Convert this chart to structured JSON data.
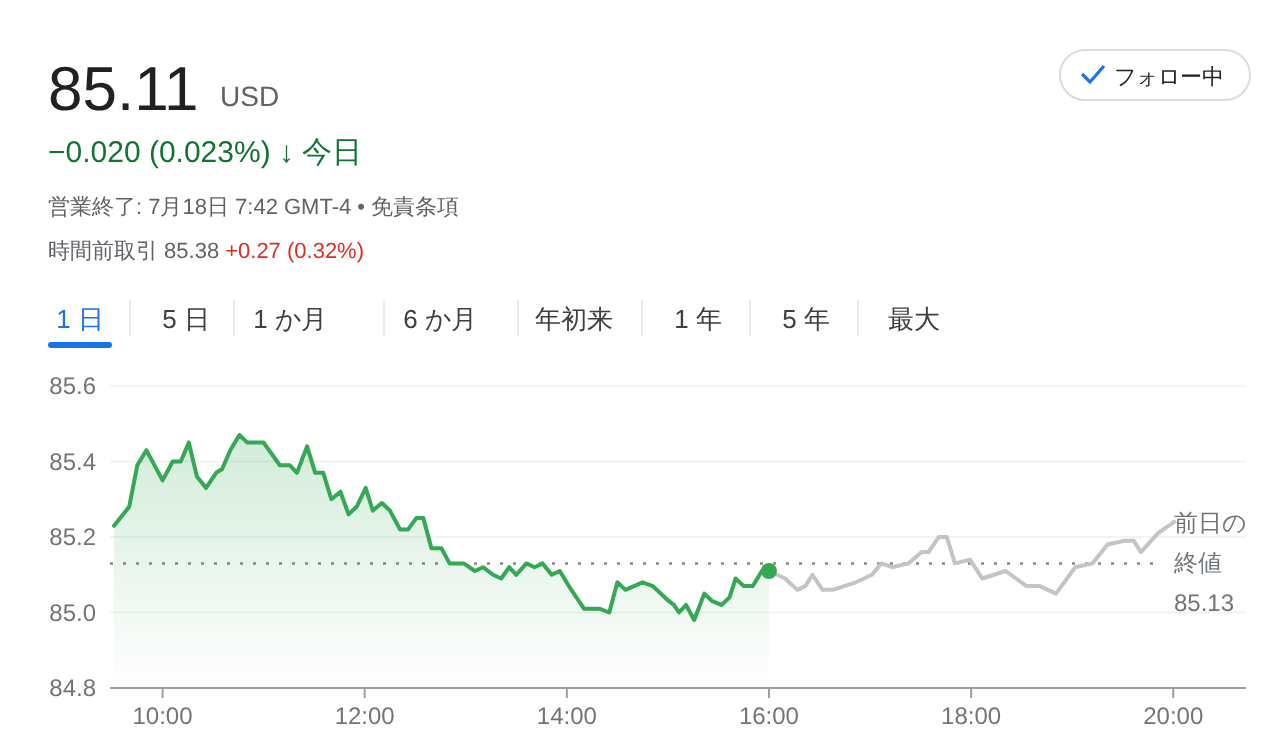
{
  "chart_data": {
    "type": "area",
    "title": "85.11",
    "subtitle": "−0.020 (0.023%) ↓ 今日",
    "annotations": [
      "USD",
      "営業終了: 7月18日 7:42 GMT-4 • 免責条項",
      "時間前取引 85.38",
      "+0.27 (0.32%)",
      "フォロー中",
      "1 日",
      "5 日",
      "1 か月",
      "6 か月",
      "年初来",
      "1 年",
      "5 年",
      "最大"
    ],
    "series": [
      {
        "type": "area",
        "color": "#34a853",
        "x": [
          9.52,
          9.67,
          9.75,
          9.84,
          10.0,
          10.1,
          10.18,
          10.26,
          10.34,
          10.43,
          10.53,
          10.59,
          10.67,
          10.76,
          10.84,
          11.0,
          11.16,
          11.26,
          11.33,
          11.43,
          11.51,
          11.59,
          11.67,
          11.76,
          11.84,
          11.92,
          12.01,
          12.08,
          12.17,
          12.25,
          12.35,
          12.43,
          12.51,
          12.58,
          12.66,
          12.76,
          12.84,
          12.98,
          13.09,
          13.17,
          13.27,
          13.35,
          13.43,
          13.5,
          13.6,
          13.68,
          13.76,
          13.85,
          13.93,
          14.02,
          14.17,
          14.32,
          14.42,
          14.5,
          14.58,
          14.75,
          14.85,
          15.01,
          15.06,
          15.11,
          15.18,
          15.26,
          15.36,
          15.44,
          15.53,
          15.61,
          15.67,
          15.75,
          15.84,
          15.93,
          16.0
        ],
        "values": [
          85.23,
          85.28,
          85.39,
          85.43,
          85.35,
          85.4,
          85.4,
          85.45,
          85.36,
          85.33,
          85.37,
          85.38,
          85.43,
          85.47,
          85.45,
          85.45,
          85.39,
          85.39,
          85.37,
          85.44,
          85.37,
          85.37,
          85.3,
          85.32,
          85.26,
          85.28,
          85.33,
          85.27,
          85.29,
          85.27,
          85.22,
          85.22,
          85.25,
          85.25,
          85.17,
          85.17,
          85.13,
          85.13,
          85.11,
          85.12,
          85.1,
          85.09,
          85.12,
          85.1,
          85.13,
          85.12,
          85.13,
          85.1,
          85.11,
          85.07,
          85.01,
          85.01,
          85.0,
          85.08,
          85.06,
          85.08,
          85.07,
          85.03,
          85.02,
          85.0,
          85.02,
          84.98,
          85.05,
          85.03,
          85.02,
          85.04,
          85.09,
          85.07,
          85.07,
          85.11,
          85.11
        ]
      },
      {
        "type": "line",
        "color": "#c4c4c4",
        "x": [
          16.0,
          16.16,
          16.28,
          16.36,
          16.43,
          16.53,
          16.63,
          16.86,
          17.02,
          17.11,
          17.22,
          17.38,
          17.51,
          17.58,
          17.68,
          17.76,
          17.84,
          17.99,
          18.11,
          18.34,
          18.55,
          18.68,
          18.84,
          19.03,
          19.2,
          19.35,
          19.52,
          19.61,
          19.68,
          19.85,
          20.01
        ],
        "values": [
          85.11,
          85.09,
          85.06,
          85.07,
          85.1,
          85.06,
          85.06,
          85.08,
          85.1,
          85.13,
          85.12,
          85.13,
          85.16,
          85.16,
          85.2,
          85.2,
          85.13,
          85.14,
          85.09,
          85.11,
          85.07,
          85.07,
          85.05,
          85.12,
          85.13,
          85.18,
          85.19,
          85.19,
          85.16,
          85.21,
          85.24
        ]
      },
      {
        "type": "scatter",
        "color": "#34a853",
        "marker": "circle",
        "x": [
          16.0
        ],
        "values": [
          85.11
        ]
      }
    ],
    "xlim": [
      9.48,
      20.72
    ],
    "ylim": [
      84.8,
      85.6
    ],
    "xticks": [
      {
        "value": 10,
        "label": "10:00"
      },
      {
        "value": 12,
        "label": "12:00"
      },
      {
        "value": 14,
        "label": "14:00"
      },
      {
        "value": 16,
        "label": "16:00"
      },
      {
        "value": 18,
        "label": "18:00"
      },
      {
        "value": 20,
        "label": "20:00"
      }
    ],
    "yticks": [
      84.8,
      {
        "value": 85.0,
        "label": "85.0"
      },
      85.2,
      85.4,
      85.6
    ],
    "grid": "y",
    "ref_lines": [
      {
        "axis": "y",
        "value": 85.13,
        "label": "前日の終値85.13",
        "color": "#888888",
        "line_style": "dotted"
      }
    ]
  }
}
